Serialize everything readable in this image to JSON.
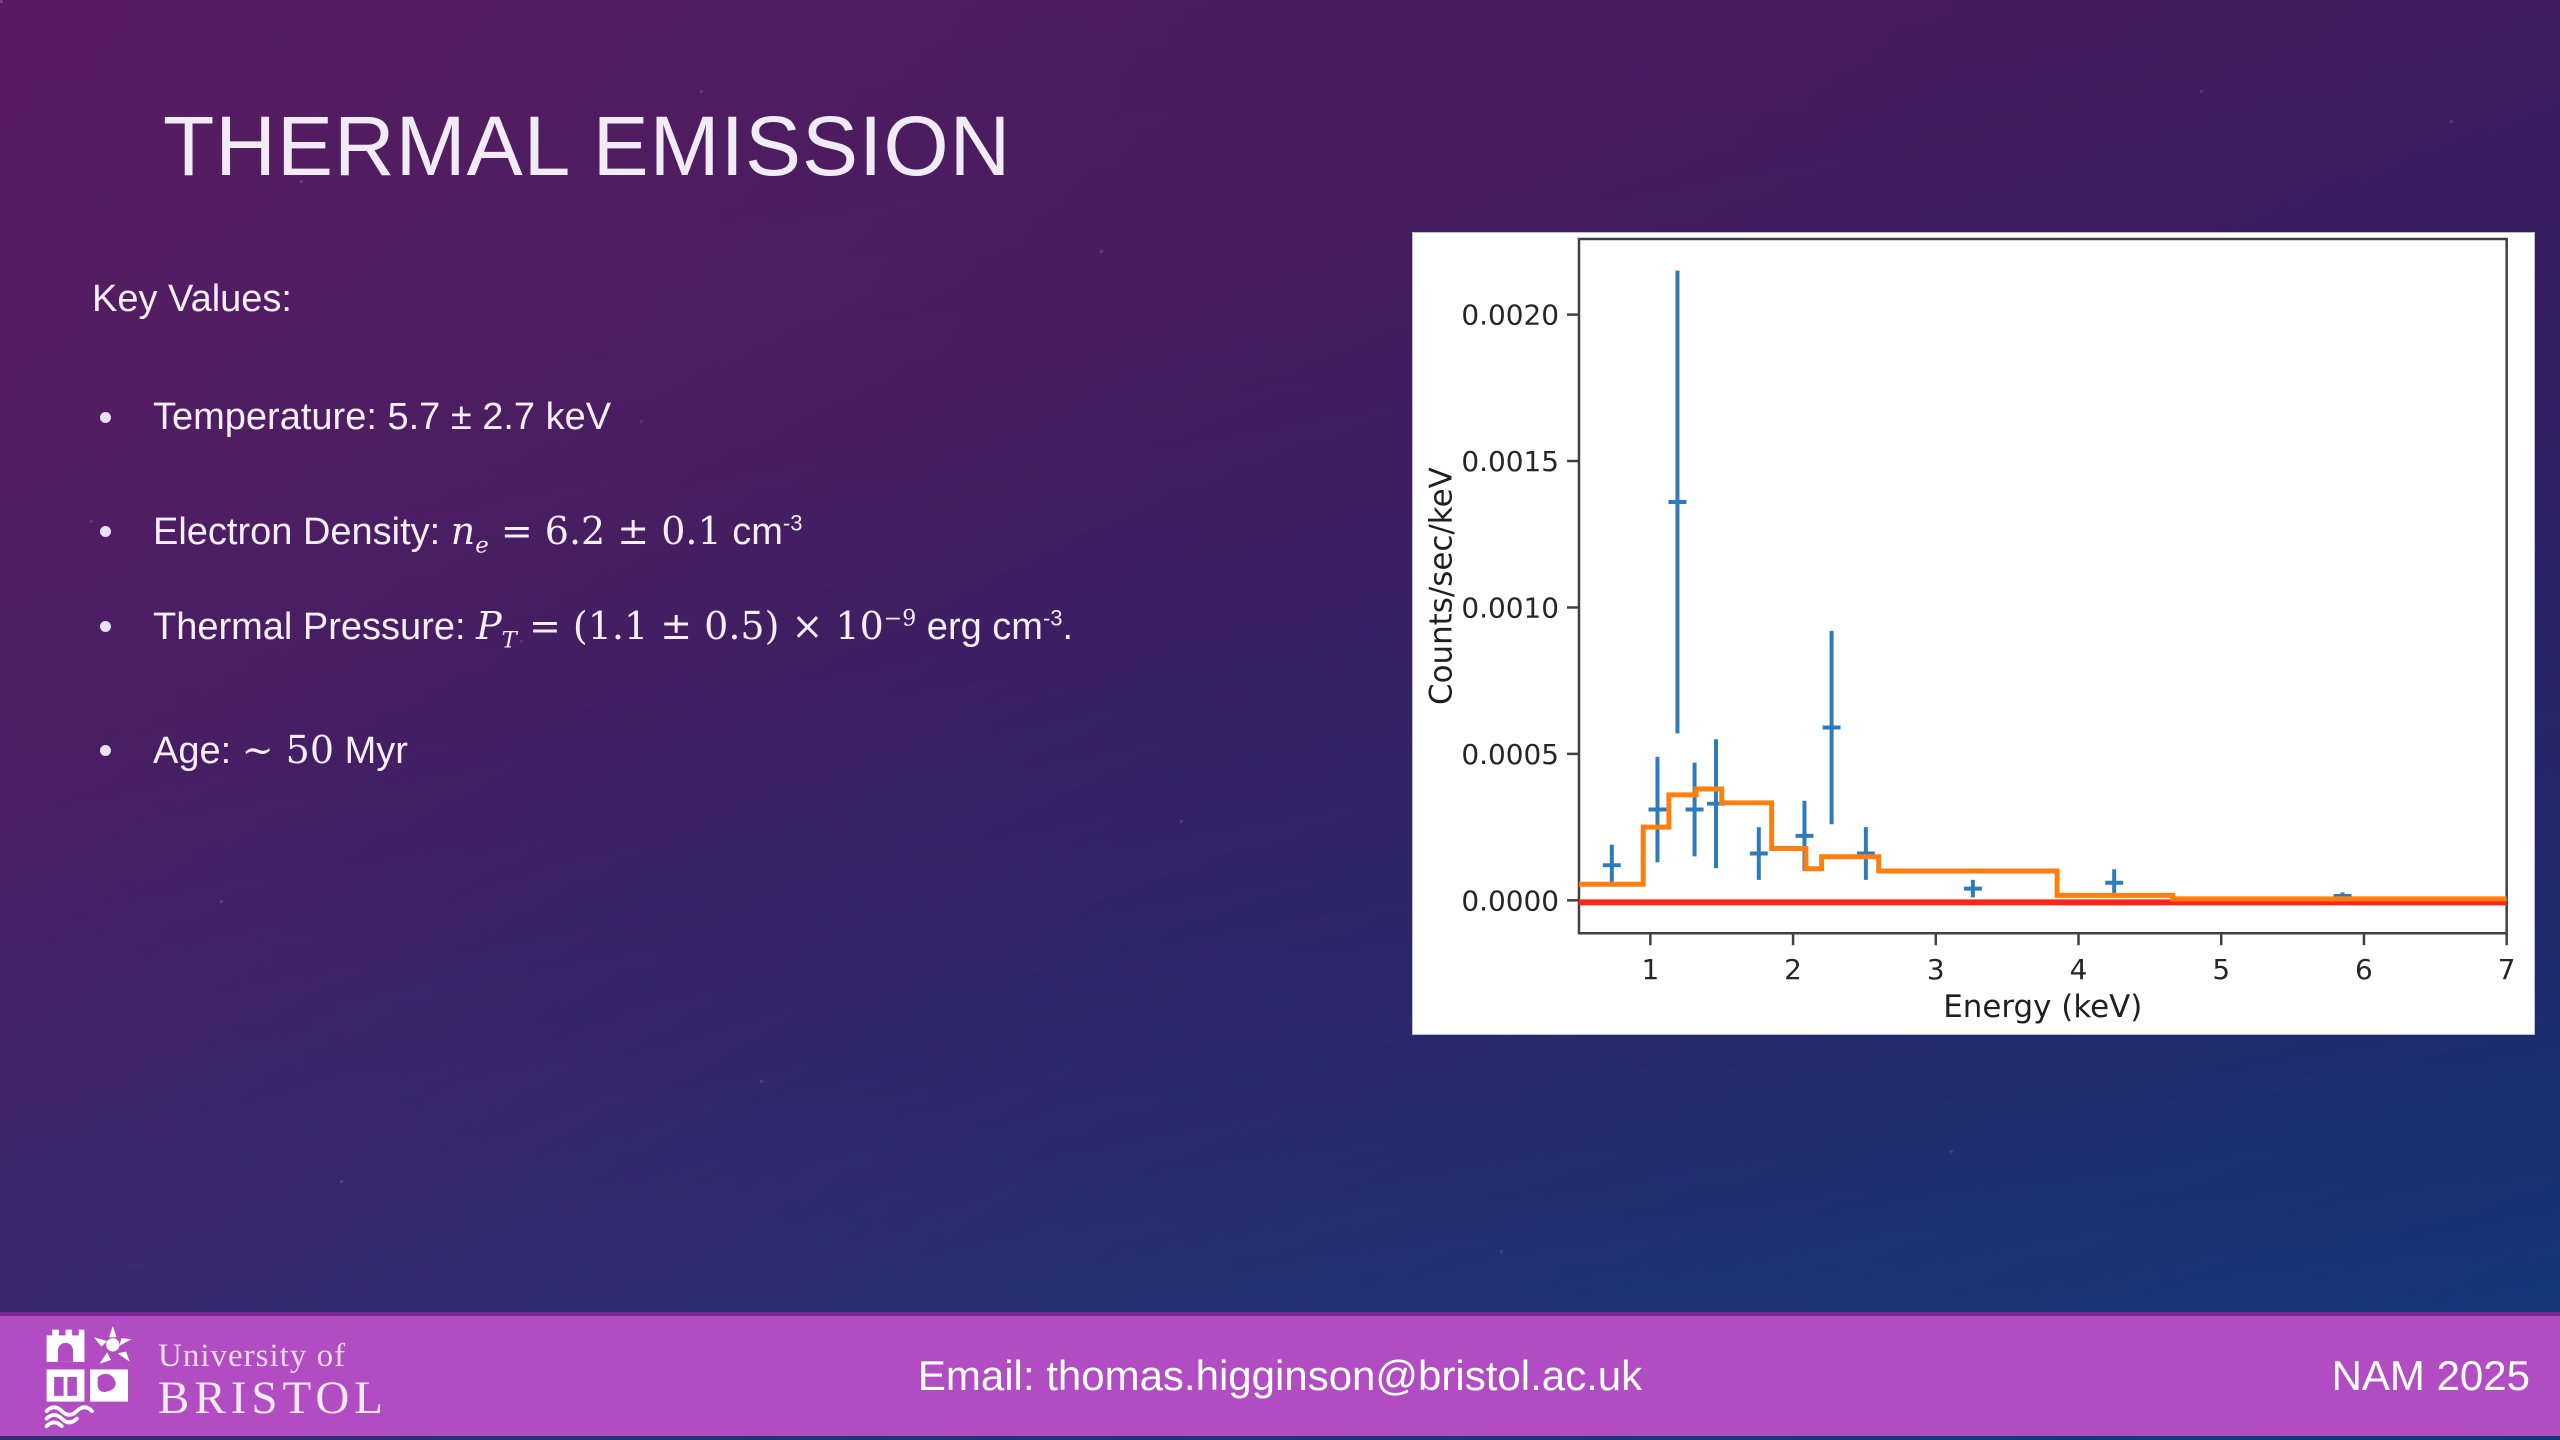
{
  "slide": {
    "title": "THERMAL EMISSION",
    "heading": "Key Values:",
    "bullets": [
      {
        "segments": [
          {
            "t": "Temperature: 5.7 ± 2.7 keV",
            "style": "plain"
          }
        ]
      },
      {
        "segments": [
          {
            "t": "Electron Density: ",
            "style": "plain"
          },
          {
            "t": "n",
            "style": "var"
          },
          {
            "t": "e",
            "style": "subm"
          },
          {
            "t": " = 6.2 ± 0.1",
            "style": "math"
          },
          {
            "t": " cm",
            "style": "plain"
          },
          {
            "t": "-3",
            "style": "sup"
          }
        ]
      },
      {
        "segments": [
          {
            "t": "Thermal Pressure: ",
            "style": "plain"
          },
          {
            "t": "P",
            "style": "var"
          },
          {
            "t": "T",
            "style": "subm"
          },
          {
            "t": " = (1.1 ± 0.5) × 10",
            "style": "math"
          },
          {
            "t": "−9",
            "style": "supm"
          },
          {
            "t": " erg cm",
            "style": "plain"
          },
          {
            "t": "-3",
            "style": "sup"
          },
          {
            "t": ".",
            "style": "plain"
          }
        ]
      },
      {
        "segments": [
          {
            "t": "Age: ",
            "style": "plain"
          },
          {
            "t": "~ 50",
            "style": "math"
          },
          {
            "t": " Myr",
            "style": "plain"
          }
        ]
      }
    ]
  },
  "footer": {
    "email": "Email: thomas.higginson@bristol.ac.uk",
    "conference": "NAM 2025",
    "logo": {
      "line1": "University of",
      "line2": "BRISTOL",
      "icon": "university-crest-icon"
    }
  },
  "colors": {
    "footer_magenta": "#b14cc3",
    "background_purple": "#4e1c5e",
    "background_blue": "#124080",
    "data_blue": "#2e7bbc",
    "model_orange": "#ff7f0e",
    "background_line_red": "#ff2419",
    "panel_white": "#ffffff"
  },
  "chart_data": {
    "type": "line",
    "title": "",
    "xlabel": "Energy (keV)",
    "ylabel": "Counts/sec/keV",
    "xlim": [
      0.5,
      7.0
    ],
    "ylim": [
      -0.00011,
      0.00226
    ],
    "xticks": [
      1,
      2,
      3,
      4,
      5,
      6,
      7
    ],
    "yticks": [
      "0.0000",
      "0.0005",
      "0.0010",
      "0.0015",
      "0.0020"
    ],
    "grid": false,
    "legend": null,
    "series": [
      {
        "name": "observed X-ray spectrum",
        "style": "errorbar",
        "color": "#2e7bbc",
        "points": [
          {
            "x": 0.73,
            "y": 0.00012,
            "yerr": 7e-05
          },
          {
            "x": 1.05,
            "y": 0.00031,
            "yerr": 0.00018
          },
          {
            "x": 1.19,
            "y": 0.00136,
            "yerr": 0.00079
          },
          {
            "x": 1.31,
            "y": 0.00031,
            "yerr": 0.00016
          },
          {
            "x": 1.46,
            "y": 0.00033,
            "yerr": 0.00022
          },
          {
            "x": 1.76,
            "y": 0.00016,
            "yerr": 9e-05
          },
          {
            "x": 2.08,
            "y": 0.00022,
            "yerr": 0.00012
          },
          {
            "x": 2.27,
            "y": 0.00059,
            "yerr": 0.00033
          },
          {
            "x": 2.51,
            "y": 0.00016,
            "yerr": 9e-05
          },
          {
            "x": 3.26,
            "y": 4e-05,
            "yerr": 3e-05
          },
          {
            "x": 4.25,
            "y": 6e-05,
            "yerr": 4.6e-05
          },
          {
            "x": 5.85,
            "y": 1.5e-05,
            "yerr": 1.2e-05
          }
        ]
      },
      {
        "name": "background level",
        "style": "hline",
        "color": "#ff2419",
        "y": 0.0,
        "x_start": 0.5,
        "x_end": 7.0
      },
      {
        "name": "thermal model fit",
        "style": "step",
        "color": "#ff7f0e",
        "edges": [
          0.5,
          0.95,
          1.13,
          1.32,
          1.5,
          1.85,
          2.09,
          2.2,
          2.6,
          3.85,
          4.66,
          7.0
        ],
        "values": [
          5.5e-05,
          0.00025,
          0.00036,
          0.00038,
          0.000333,
          0.000177,
          0.000108,
          0.000149,
          0.0001,
          1.7e-05,
          5e-06
        ]
      }
    ]
  }
}
